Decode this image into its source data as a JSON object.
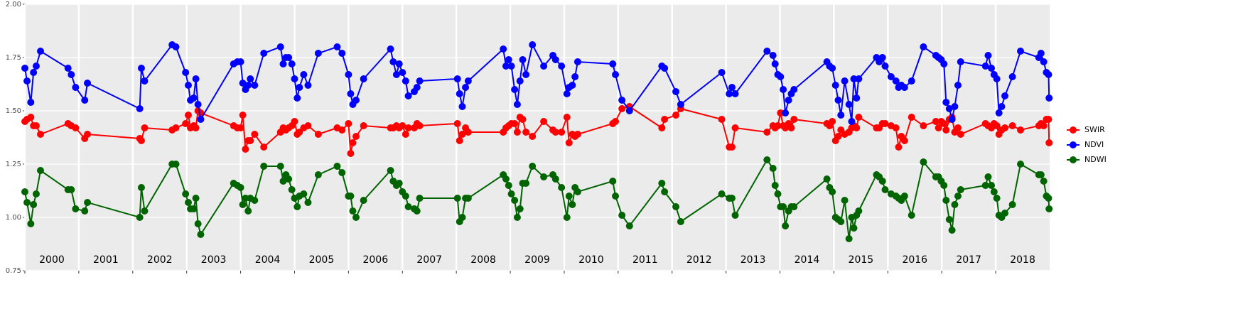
{
  "chart_data": {
    "type": "line",
    "x": [
      2000.0,
      2000.04,
      2000.11,
      2000.16,
      2000.21,
      2000.29,
      2000.8,
      2000.86,
      2000.94,
      2001.11,
      2001.16,
      2002.13,
      2002.16,
      2002.22,
      2002.73,
      2002.8,
      2002.98,
      2003.03,
      2003.07,
      2003.13,
      2003.17,
      2003.21,
      2003.26,
      2003.87,
      2003.94,
      2004.0,
      2004.04,
      2004.09,
      2004.14,
      2004.18,
      2004.26,
      2004.43,
      2004.74,
      2004.79,
      2004.84,
      2004.89,
      2004.95,
      2005.0,
      2005.05,
      2005.09,
      2005.17,
      2005.25,
      2005.44,
      2005.79,
      2005.88,
      2006.0,
      2006.04,
      2006.08,
      2006.14,
      2006.28,
      2006.78,
      2006.83,
      2006.89,
      2006.94,
      2007.0,
      2007.06,
      2007.11,
      2007.22,
      2007.27,
      2007.32,
      2008.02,
      2008.06,
      2008.11,
      2008.17,
      2008.22,
      2008.87,
      2008.92,
      2008.97,
      2009.02,
      2009.08,
      2009.13,
      2009.18,
      2009.23,
      2009.29,
      2009.41,
      2009.62,
      2009.79,
      2009.84,
      2009.95,
      2010.05,
      2010.09,
      2010.15,
      2010.2,
      2010.25,
      2010.9,
      2010.95,
      2011.07,
      2011.21,
      2011.81,
      2011.86,
      2012.07,
      2012.16,
      2012.92,
      2013.06,
      2013.11,
      2013.17,
      2013.76,
      2013.87,
      2013.91,
      2013.96,
      2014.01,
      2014.06,
      2014.1,
      2014.16,
      2014.21,
      2014.26,
      2014.87,
      2014.92,
      2014.97,
      2015.03,
      2015.08,
      2015.13,
      2015.2,
      2015.28,
      2015.33,
      2015.37,
      2015.42,
      2015.46,
      2015.79,
      2015.84,
      2015.9,
      2015.95,
      2016.06,
      2016.15,
      2016.2,
      2016.25,
      2016.31,
      2016.44,
      2016.66,
      2016.89,
      2016.94,
      2016.99,
      2017.04,
      2017.08,
      2017.14,
      2017.19,
      2017.24,
      2017.3,
      2017.35,
      2017.81,
      2017.86,
      2017.92,
      2017.97,
      2018.02,
      2018.06,
      2018.11,
      2018.17,
      2018.31,
      2018.46,
      2018.8,
      2018.84,
      2018.89,
      2018.94,
      2018.98,
      2018.99
    ],
    "series": [
      {
        "name": "SWIR",
        "color": "#ff0000",
        "values": [
          1.45,
          1.46,
          1.47,
          1.43,
          1.43,
          1.39,
          1.44,
          1.43,
          1.42,
          1.37,
          1.39,
          1.37,
          1.36,
          1.42,
          1.41,
          1.42,
          1.44,
          1.48,
          1.42,
          1.43,
          1.42,
          1.5,
          1.49,
          1.43,
          1.42,
          1.42,
          1.48,
          1.32,
          1.36,
          1.36,
          1.39,
          1.33,
          1.4,
          1.42,
          1.41,
          1.42,
          1.43,
          1.45,
          1.39,
          1.4,
          1.42,
          1.43,
          1.39,
          1.42,
          1.41,
          1.44,
          1.3,
          1.35,
          1.38,
          1.43,
          1.42,
          1.42,
          1.43,
          1.42,
          1.43,
          1.39,
          1.42,
          1.42,
          1.44,
          1.43,
          1.44,
          1.36,
          1.39,
          1.42,
          1.4,
          1.4,
          1.42,
          1.43,
          1.44,
          1.44,
          1.4,
          1.47,
          1.46,
          1.4,
          1.38,
          1.45,
          1.41,
          1.4,
          1.4,
          1.47,
          1.35,
          1.39,
          1.38,
          1.39,
          1.44,
          1.45,
          1.51,
          1.52,
          1.42,
          1.46,
          1.48,
          1.51,
          1.46,
          1.33,
          1.33,
          1.42,
          1.4,
          1.43,
          1.42,
          1.43,
          1.49,
          1.43,
          1.42,
          1.44,
          1.42,
          1.46,
          1.44,
          1.43,
          1.45,
          1.36,
          1.38,
          1.41,
          1.39,
          1.4,
          1.42,
          1.43,
          1.42,
          1.47,
          1.42,
          1.42,
          1.44,
          1.44,
          1.43,
          1.42,
          1.33,
          1.38,
          1.36,
          1.47,
          1.43,
          1.45,
          1.42,
          1.45,
          1.44,
          1.41,
          1.46,
          1.47,
          1.4,
          1.42,
          1.39,
          1.44,
          1.43,
          1.42,
          1.44,
          1.43,
          1.39,
          1.41,
          1.42,
          1.43,
          1.41,
          1.43,
          1.44,
          1.43,
          1.46,
          1.46,
          1.35
        ]
      },
      {
        "name": "NDVI",
        "color": "#0000ff",
        "values": [
          1.7,
          1.64,
          1.54,
          1.68,
          1.71,
          1.78,
          1.7,
          1.67,
          1.61,
          1.55,
          1.63,
          1.51,
          1.7,
          1.64,
          1.81,
          1.8,
          1.68,
          1.62,
          1.55,
          1.56,
          1.65,
          1.53,
          1.46,
          1.72,
          1.73,
          1.73,
          1.63,
          1.6,
          1.62,
          1.65,
          1.62,
          1.77,
          1.8,
          1.72,
          1.75,
          1.75,
          1.72,
          1.65,
          1.56,
          1.61,
          1.67,
          1.62,
          1.77,
          1.8,
          1.77,
          1.67,
          1.58,
          1.53,
          1.55,
          1.65,
          1.79,
          1.73,
          1.67,
          1.72,
          1.68,
          1.64,
          1.57,
          1.59,
          1.61,
          1.64,
          1.65,
          1.58,
          1.52,
          1.61,
          1.64,
          1.79,
          1.71,
          1.74,
          1.71,
          1.6,
          1.53,
          1.64,
          1.74,
          1.67,
          1.81,
          1.71,
          1.76,
          1.74,
          1.71,
          1.58,
          1.61,
          1.62,
          1.66,
          1.73,
          1.72,
          1.67,
          1.55,
          1.5,
          1.71,
          1.7,
          1.59,
          1.53,
          1.68,
          1.58,
          1.61,
          1.58,
          1.78,
          1.76,
          1.72,
          1.67,
          1.66,
          1.6,
          1.49,
          1.55,
          1.58,
          1.6,
          1.73,
          1.71,
          1.7,
          1.62,
          1.55,
          1.48,
          1.64,
          1.53,
          1.45,
          1.65,
          1.56,
          1.65,
          1.75,
          1.73,
          1.75,
          1.71,
          1.66,
          1.64,
          1.61,
          1.62,
          1.61,
          1.64,
          1.8,
          1.76,
          1.75,
          1.74,
          1.72,
          1.54,
          1.51,
          1.46,
          1.52,
          1.62,
          1.73,
          1.71,
          1.76,
          1.7,
          1.67,
          1.65,
          1.49,
          1.52,
          1.57,
          1.66,
          1.78,
          1.75,
          1.77,
          1.73,
          1.68,
          1.67,
          1.56
        ]
      },
      {
        "name": "NDWI",
        "color": "#006400",
        "values": [
          1.12,
          1.07,
          0.97,
          1.06,
          1.11,
          1.22,
          1.13,
          1.13,
          1.04,
          1.03,
          1.07,
          1.0,
          1.14,
          1.03,
          1.25,
          1.25,
          1.11,
          1.07,
          1.04,
          1.04,
          1.09,
          0.97,
          0.92,
          1.16,
          1.15,
          1.14,
          1.06,
          1.09,
          1.03,
          1.09,
          1.08,
          1.24,
          1.24,
          1.17,
          1.2,
          1.18,
          1.13,
          1.09,
          1.05,
          1.1,
          1.11,
          1.07,
          1.2,
          1.24,
          1.21,
          1.1,
          1.1,
          1.03,
          1.0,
          1.08,
          1.22,
          1.17,
          1.15,
          1.16,
          1.12,
          1.1,
          1.05,
          1.04,
          1.03,
          1.09,
          1.09,
          0.98,
          1.0,
          1.09,
          1.09,
          1.2,
          1.18,
          1.15,
          1.11,
          1.08,
          1.0,
          1.04,
          1.16,
          1.16,
          1.24,
          1.19,
          1.2,
          1.18,
          1.14,
          1.0,
          1.1,
          1.06,
          1.14,
          1.12,
          1.17,
          1.1,
          1.01,
          0.96,
          1.16,
          1.12,
          1.05,
          0.98,
          1.11,
          1.09,
          1.09,
          1.01,
          1.27,
          1.23,
          1.15,
          1.11,
          1.05,
          1.05,
          0.96,
          1.03,
          1.05,
          1.05,
          1.18,
          1.14,
          1.12,
          1.0,
          0.99,
          0.98,
          1.08,
          0.9,
          1.0,
          0.95,
          1.01,
          1.03,
          1.2,
          1.19,
          1.17,
          1.13,
          1.11,
          1.1,
          1.09,
          1.08,
          1.1,
          1.01,
          1.26,
          1.19,
          1.19,
          1.17,
          1.15,
          1.08,
          0.99,
          0.94,
          1.06,
          1.1,
          1.13,
          1.15,
          1.19,
          1.15,
          1.12,
          1.09,
          1.01,
          1.0,
          1.02,
          1.06,
          1.25,
          1.2,
          1.2,
          1.17,
          1.1,
          1.09,
          1.04
        ]
      }
    ],
    "xlim": [
      2000,
      2019
    ],
    "xticks": [
      2000,
      2001,
      2002,
      2003,
      2004,
      2005,
      2006,
      2007,
      2008,
      2009,
      2010,
      2011,
      2012,
      2013,
      2014,
      2015,
      2016,
      2017,
      2018
    ],
    "ylim": [
      0.75,
      2
    ],
    "yticks": [
      0.75,
      {
        "value": 1,
        "label": "1.00"
      },
      1.25,
      {
        "value": 1.5,
        "label": "1.50"
      },
      1.75,
      {
        "value": 2,
        "label": "2.00"
      }
    ],
    "grid": true
  }
}
